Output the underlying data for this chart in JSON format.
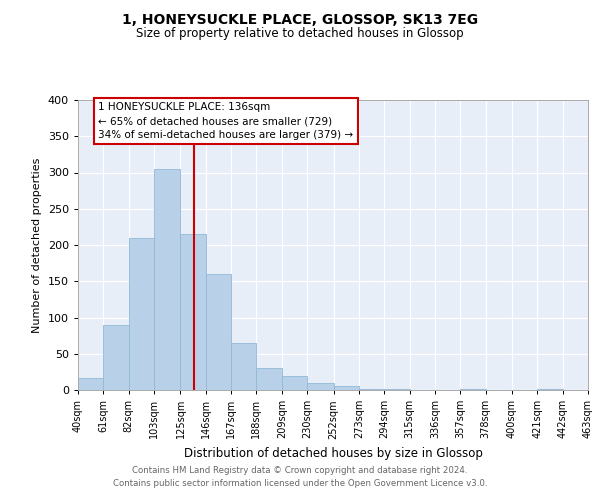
{
  "title": "1, HONEYSUCKLE PLACE, GLOSSOP, SK13 7EG",
  "subtitle": "Size of property relative to detached houses in Glossop",
  "xlabel": "Distribution of detached houses by size in Glossop",
  "ylabel": "Number of detached properties",
  "bar_color": "#b8d0e8",
  "bar_edge_color": "#92b8d8",
  "vline_x": 136,
  "vline_color": "#cc0000",
  "bin_edges": [
    40,
    61,
    82,
    103,
    125,
    146,
    167,
    188,
    209,
    230,
    252,
    273,
    294,
    315,
    336,
    357,
    378,
    400,
    421,
    442,
    463
  ],
  "bar_heights": [
    17,
    90,
    210,
    305,
    215,
    160,
    65,
    30,
    20,
    10,
    5,
    2,
    1,
    0,
    0,
    1,
    0,
    0,
    1,
    0
  ],
  "tick_labels": [
    "40sqm",
    "61sqm",
    "82sqm",
    "103sqm",
    "125sqm",
    "146sqm",
    "167sqm",
    "188sqm",
    "209sqm",
    "230sqm",
    "252sqm",
    "273sqm",
    "294sqm",
    "315sqm",
    "336sqm",
    "357sqm",
    "378sqm",
    "400sqm",
    "421sqm",
    "442sqm",
    "463sqm"
  ],
  "ylim": [
    0,
    400
  ],
  "yticks": [
    0,
    50,
    100,
    150,
    200,
    250,
    300,
    350,
    400
  ],
  "annotation_title": "1 HONEYSUCKLE PLACE: 136sqm",
  "annotation_line1": "← 65% of detached houses are smaller (729)",
  "annotation_line2": "34% of semi-detached houses are larger (379) →",
  "annotation_box_color": "white",
  "annotation_box_edge": "#cc0000",
  "footer_line1": "Contains HM Land Registry data © Crown copyright and database right 2024.",
  "footer_line2": "Contains public sector information licensed under the Open Government Licence v3.0.",
  "background_color": "#e8eef8",
  "grid_color": "white"
}
